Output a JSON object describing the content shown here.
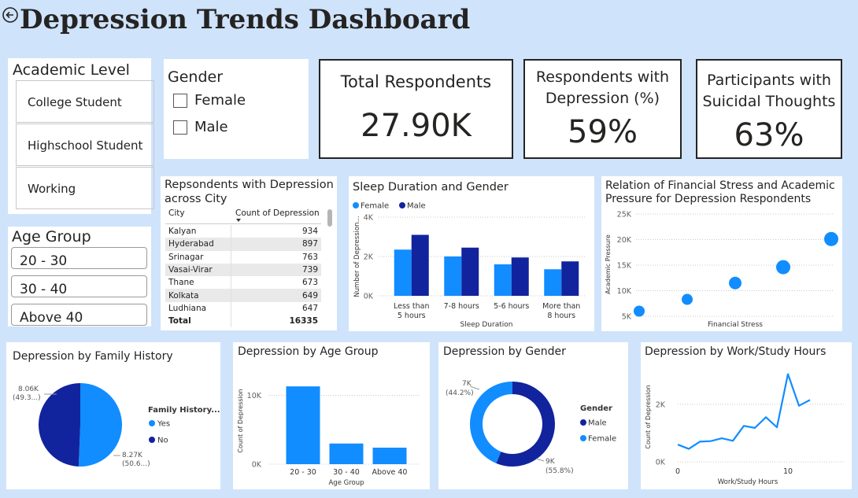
{
  "page": {
    "title": "Depression Trends Dashboard"
  },
  "colors": {
    "primary": "#118dff",
    "secondary": "#12239e",
    "background": "#cfe3fb"
  },
  "academic_level": {
    "title": "Academic Level",
    "items": [
      "College Student",
      "Highschool Student",
      "Working"
    ]
  },
  "gender_slicer": {
    "title": "Gender",
    "items": [
      "Female",
      "Male"
    ]
  },
  "age_group_slicer": {
    "title": "Age Group",
    "items": [
      "20 - 30",
      "30 - 40",
      "Above 40"
    ]
  },
  "kpis": {
    "total": {
      "label": "Total Respondents",
      "value": "27.90K"
    },
    "depression": {
      "label": "Respondents with Depression (%)",
      "value": "59%"
    },
    "suicidal": {
      "label": "Participants with Suicidal Thoughts",
      "value": "63%"
    }
  },
  "city_table": {
    "title": "Repsondents with Depression across City",
    "col_city": "City",
    "col_count": "Count of Depression",
    "rows": [
      {
        "city": "Kalyan",
        "count": "934"
      },
      {
        "city": "Hyderabad",
        "count": "897"
      },
      {
        "city": "Srinagar",
        "count": "763"
      },
      {
        "city": "Vasai-Virar",
        "count": "739"
      },
      {
        "city": "Thane",
        "count": "673"
      },
      {
        "city": "Kolkata",
        "count": "649"
      },
      {
        "city": "Ludhiana",
        "count": "647"
      }
    ],
    "total_label": "Total",
    "total_value": "16335"
  },
  "chart_data": [
    {
      "id": "sleep",
      "type": "bar",
      "title": "Sleep Duration and Gender",
      "xlabel": "Sleep Duration",
      "ylabel": "Number of Depression...",
      "categories": [
        "Less than 5 hours",
        "7-8 hours",
        "5-6 hours",
        "More than 8 hours"
      ],
      "series": [
        {
          "name": "Female",
          "color": "#118dff",
          "values": [
            2350,
            2000,
            1600,
            1350
          ]
        },
        {
          "name": "Male",
          "color": "#12239e",
          "values": [
            3100,
            2450,
            1950,
            1750
          ]
        }
      ],
      "ylim": [
        0,
        4000
      ],
      "yticks": [
        "0K",
        "2K",
        "4K"
      ],
      "legend": "top-left"
    },
    {
      "id": "financial",
      "type": "scatter",
      "title": "Relation of Financial Stress and Academic Pressure for Depression Respondents",
      "xlabel": "Financial Stress",
      "ylabel": "Academic Pressure",
      "x": [
        1,
        2,
        3,
        4,
        5
      ],
      "y": [
        6000,
        8300,
        11500,
        14600,
        20100
      ],
      "sizes": [
        7,
        7,
        8,
        9,
        9
      ],
      "ylim": [
        5000,
        25000
      ],
      "yticks": [
        "5K",
        "10K",
        "15K",
        "20K",
        "25K"
      ],
      "color": "#118dff"
    },
    {
      "id": "family",
      "type": "pie",
      "title": "Depression by Family History",
      "legend_title": "Family History...",
      "labels": [
        "Yes",
        "No"
      ],
      "values": [
        8270,
        8060
      ],
      "percents": [
        50.6,
        49.3
      ],
      "data_labels": [
        [
          "8.27K",
          "(50.6...)"
        ],
        [
          "8.06K",
          "(49.3...)"
        ]
      ],
      "colors": [
        "#118dff",
        "#12239e"
      ],
      "legend": "right"
    },
    {
      "id": "agegroup",
      "type": "bar",
      "title": "Depression by Age Group",
      "xlabel": "Age Group",
      "ylabel": "Count of Depression",
      "categories": [
        "20 - 30",
        "30 - 40",
        "Above 40"
      ],
      "values": [
        11300,
        3000,
        2400
      ],
      "ylim": [
        0,
        12000
      ],
      "yticks": [
        "0K",
        "10K"
      ],
      "color": "#118dff"
    },
    {
      "id": "gender",
      "type": "pie",
      "title": "Depression by Gender",
      "legend_title": "Gender",
      "labels": [
        "Male",
        "Female"
      ],
      "values": [
        9000,
        7000
      ],
      "percents": [
        55.8,
        44.2
      ],
      "data_labels": [
        [
          "9K",
          "(55.8%)"
        ],
        [
          "7K",
          "(44.2%)"
        ]
      ],
      "colors": [
        "#12239e",
        "#118dff"
      ],
      "legend": "right"
    },
    {
      "id": "workhours",
      "type": "line",
      "title": "Depression by Work/Study Hours",
      "xlabel": "Work/Study Hours",
      "ylabel": "Count of Depression",
      "x": [
        0,
        1,
        2,
        3,
        4,
        5,
        6,
        7,
        8,
        9,
        10,
        11,
        12
      ],
      "y": [
        600,
        450,
        700,
        720,
        820,
        730,
        1250,
        1180,
        1550,
        1200,
        3050,
        1950,
        2150
      ],
      "xlim": [
        0,
        12
      ],
      "ylim": [
        0,
        3200
      ],
      "xticks": [
        "0",
        "10"
      ],
      "yticks": [
        "0K",
        "2K"
      ],
      "color": "#118dff"
    }
  ]
}
